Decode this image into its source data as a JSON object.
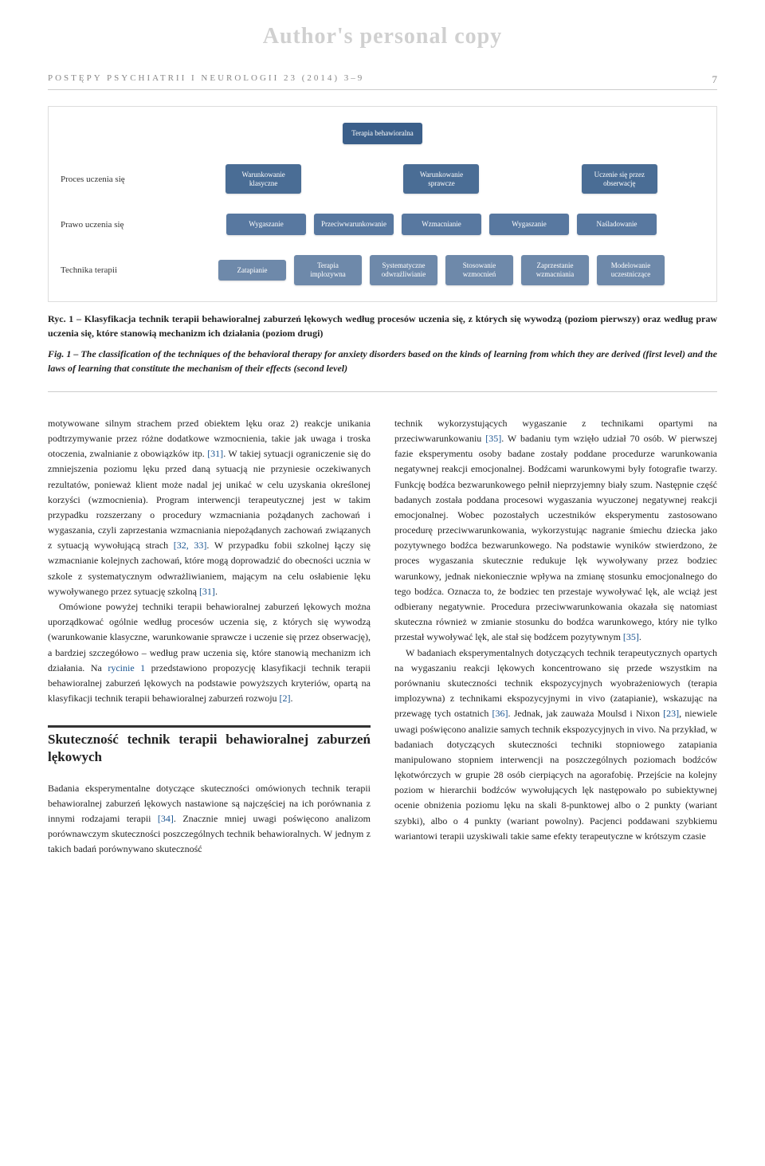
{
  "watermark": "Author's personal copy",
  "journal": "POSTĘPY PSYCHIATRII I NEUROLOGII 23 (2014) 3–9",
  "page_number": "7",
  "diagram": {
    "colors": {
      "root": "#3b5f8a",
      "level1": "#4a6d95",
      "level2": "#5878a0",
      "level3": "#6e89aa",
      "text": "#ffffff"
    },
    "root": {
      "label": "Terapia behawioralna"
    },
    "row1": {
      "label": "Proces uczenia się",
      "boxes": [
        "Warunkowanie klasyczne",
        "Warunkowanie sprawcze",
        "Uczenie się przez obserwację"
      ]
    },
    "row2": {
      "label": "Prawo uczenia się",
      "boxes": [
        "Wygaszanie",
        "Przeciwwarunkowanie",
        "Wzmacnianie",
        "Wygaszanie",
        "Naśladowanie"
      ]
    },
    "row3": {
      "label": "Technika terapii",
      "boxes": [
        "Zatapianie",
        "Terapia implozywna",
        "Systematyczne odwrażliwianie",
        "Stosowanie wzmocnień",
        "Zaprzestanie wzmacniania",
        "Modelowanie uczestniczące"
      ]
    }
  },
  "caption_pl_prefix": "Ryc. 1 – ",
  "caption_pl": "Klasyfikacja technik terapii behawioralnej zaburzeń lękowych według procesów uczenia się, z których się wywodzą (poziom pierwszy) oraz według praw uczenia się, które stanowią mechanizm ich działania (poziom drugi)",
  "caption_en_prefix": "Fig. 1 – ",
  "caption_en": "The classification of the techniques of the behavioral therapy for anxiety disorders based on the kinds of learning from which they are derived (first level) and the laws of learning that constitute the mechanism of their effects (second level)",
  "body": {
    "p1": "motywowane silnym strachem przed obiektem lęku oraz 2) reakcje unikania podtrzymywanie przez różne dodatkowe wzmocnienia, takie jak uwaga i troska otoczenia, zwalnianie z obowiązków itp. ",
    "p1_ref1": "[31]",
    "p1b": ". W takiej sytuacji ograniczenie się do zmniejszenia poziomu lęku przed daną sytuacją nie przyniesie oczekiwanych rezultatów, ponieważ klient może nadal jej unikać w celu uzyskania określonej korzyści (wzmocnienia). Program interwencji terapeutycznej jest w takim przypadku rozszerzany o procedury wzmacniania pożądanych zachowań i wygaszania, czyli zaprzestania wzmacniania niepożądanych zachowań związanych z sytuacją wywołującą strach ",
    "p1_ref2": "[32, 33]",
    "p1c": ". W przypadku fobii szkolnej łączy się wzmacnianie kolejnych zachowań, które mogą doprowadzić do obecności ucznia w szkole z systematycznym odwrażliwianiem, mającym na celu osłabienie lęku wywoływanego przez sytuację szkolną ",
    "p1_ref3": "[31]",
    "p1d": ".",
    "p2": "Omówione powyżej techniki terapii behawioralnej zaburzeń lękowych można uporządkować ogólnie według procesów uczenia się, z których się wywodzą (warunkowanie klasyczne, warunkowanie sprawcze i uczenie się przez obserwację), a bardziej szczegółowo – według praw uczenia się, które stanowią mechanizm ich działania. Na ",
    "p2_ref1": "rycinie 1",
    "p2b": " przedstawiono propozycję klasyfikacji technik terapii behawioralnej zaburzeń lękowych na podstawie powyższych kryteriów, opartą na klasyfikacji technik terapii behawioralnej zaburzeń rozwoju ",
    "p2_ref2": "[2]",
    "p2c": ".",
    "section_title": "Skuteczność technik terapii behawioralnej zaburzeń lękowych",
    "p3": "Badania eksperymentalne dotyczące skuteczności omówionych technik terapii behawioralnej zaburzeń lękowych nastawione są najczęściej na ich porównania z innymi rodzajami terapii ",
    "p3_ref1": "[34]",
    "p3b": ". Znacznie mniej uwagi poświęcono analizom porównawczym skuteczności poszczególnych technik behawioralnych. W jednym z takich badań porównywano skuteczność ",
    "p4": "technik wykorzystujących wygaszanie z technikami opartymi na przeciwwarunkowaniu ",
    "p4_ref1": "[35]",
    "p4b": ". W badaniu tym wzięło udział 70 osób. W pierwszej fazie eksperymentu osoby badane zostały poddane procedurze warunkowania negatywnej reakcji emocjonalnej. Bodźcami warunkowymi były fotografie twarzy. Funkcję bodźca bezwarunkowego pełnił nieprzyjemny biały szum. Następnie część badanych została poddana procesowi wygaszania wyuczonej negatywnej reakcji emocjonalnej. Wobec pozostałych uczestników eksperymentu zastosowano procedurę przeciwwarunkowania, wykorzystując nagranie śmiechu dziecka jako pozytywnego bodźca bezwarunkowego. Na podstawie wyników stwierdzono, że proces wygaszania skutecznie redukuje lęk wywoływany przez bodziec warunkowy, jednak niekoniecznie wpływa na zmianę stosunku emocjonalnego do tego bodźca. Oznacza to, że bodziec ten przestaje wywoływać lęk, ale wciąż jest odbierany negatywnie. Procedura przeciwwarunkowania okazała się natomiast skuteczna również w zmianie stosunku do bodźca warunkowego, który nie tylko przestał wywoływać lęk, ale stał się bodźcem pozytywnym ",
    "p4_ref2": "[35]",
    "p4c": ".",
    "p5": "W badaniach eksperymentalnych dotyczących technik terapeutycznych opartych na wygaszaniu reakcji lękowych koncentrowano się przede wszystkim na porównaniu skuteczności technik ekspozycyjnych wyobrażeniowych (terapia implozywna) z technikami ekspozycyjnymi in vivo (zatapianie), wskazując na przewagę tych ostatnich ",
    "p5_ref1": "[36]",
    "p5b": ". Jednak, jak zauważa Moulsd i Nixon ",
    "p5_ref2": "[23]",
    "p5c": ", niewiele uwagi poświęcono analizie samych technik ekspozycyjnych in vivo. Na przykład, w badaniach dotyczących skuteczności techniki stopniowego zatapiania manipulowano stopniem interwencji na poszczególnych poziomach bodźców lękotwórczych w grupie 28 osób cierpiących na agorafobię. Przejście na kolejny poziom w hierarchii bodźców wywołujących lęk następowało po subiektywnej ocenie obniżenia poziomu lęku na skali 8-punktowej albo o 2 punkty (wariant szybki), albo o 4 punkty (wariant powolny). Pacjenci poddawani szybkiemu wariantowi terapii uzyskiwali takie same efekty terapeutyczne w krótszym czasie"
  }
}
